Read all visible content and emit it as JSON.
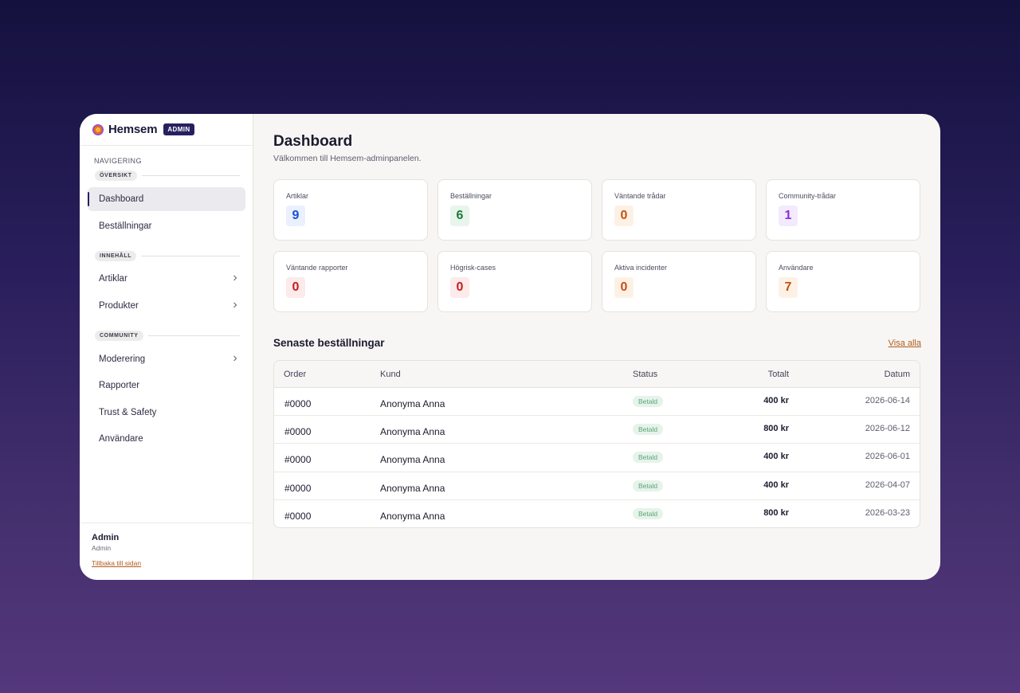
{
  "brand": {
    "name": "Hemsem",
    "badge": "ADMIN"
  },
  "sidebar": {
    "nav_title": "NAVIGERING",
    "sections": [
      {
        "label": "ÖVERSIKT"
      },
      {
        "label": "INNEHÅLL"
      },
      {
        "label": "COMMUNITY"
      }
    ],
    "items": [
      {
        "label": "Dashboard",
        "active": true
      },
      {
        "label": "Beställningar"
      },
      {
        "label": "Artiklar",
        "has_children": true
      },
      {
        "label": "Produkter",
        "has_children": true
      },
      {
        "label": "Moderering",
        "has_children": true
      },
      {
        "label": "Rapporter"
      },
      {
        "label": "Trust & Safety"
      },
      {
        "label": "Användare"
      }
    ],
    "footer": {
      "name": "Admin",
      "role": "Admin",
      "back_link": "Tillbaka till sidan"
    }
  },
  "page": {
    "title": "Dashboard",
    "subtitle": "Välkommen till Hemsem-adminpanelen."
  },
  "stats": [
    {
      "label": "Artiklar",
      "value": "9",
      "color": "#1a4fd8",
      "bg": "#eaf0fd"
    },
    {
      "label": "Beställningar",
      "value": "6",
      "color": "#1d7a3a",
      "bg": "#e8f5ec"
    },
    {
      "label": "Väntande trådar",
      "value": "0",
      "color": "#c4520f",
      "bg": "#fdf1e6"
    },
    {
      "label": "Community-trådar",
      "value": "1",
      "color": "#8a2fd8",
      "bg": "#f3eafd"
    },
    {
      "label": "Väntande rapporter",
      "value": "0",
      "color": "#c41f1f",
      "bg": "#fdeaea"
    },
    {
      "label": "Högrisk-cases",
      "value": "0",
      "color": "#c41f1f",
      "bg": "#fdeaea"
    },
    {
      "label": "Aktiva incidenter",
      "value": "0",
      "color": "#c4520f",
      "bg": "#fdf1e6"
    },
    {
      "label": "Användare",
      "value": "7",
      "color": "#c4520f",
      "bg": "#fdf1e6"
    }
  ],
  "orders": {
    "title": "Senaste beställningar",
    "view_all": "Visa alla",
    "columns": [
      "Order",
      "Kund",
      "Status",
      "Totalt",
      "Datum"
    ],
    "rows": [
      {
        "order": "#0000",
        "customer": "Anonyma Anna",
        "status": "Betald",
        "total": "400 kr",
        "date": "2026-06-14"
      },
      {
        "order": "#0000",
        "customer": "Anonyma Anna",
        "status": "Betald",
        "total": "800 kr",
        "date": "2026-06-12"
      },
      {
        "order": "#0000",
        "customer": "Anonyma Anna",
        "status": "Betald",
        "total": "400 kr",
        "date": "2026-06-01"
      },
      {
        "order": "#0000",
        "customer": "Anonyma Anna",
        "status": "Betald",
        "total": "400 kr",
        "date": "2026-04-07"
      },
      {
        "order": "#0000",
        "customer": "Anonyma Anna",
        "status": "Betald",
        "total": "800 kr",
        "date": "2026-03-23"
      }
    ]
  }
}
